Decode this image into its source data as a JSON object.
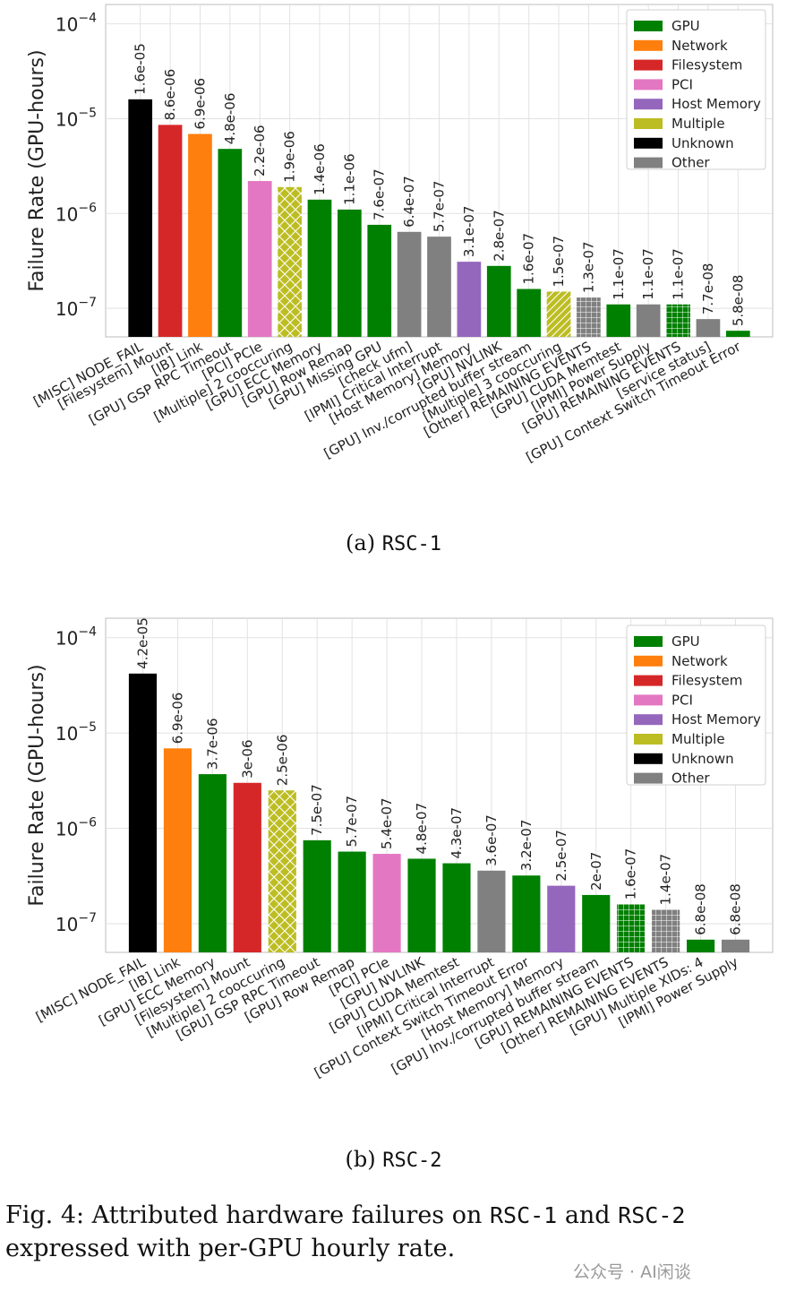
{
  "chart_data": [
    {
      "type": "bar",
      "yscale": "log",
      "ylim": [
        5e-08,
        0.00016
      ],
      "yticks": [
        {
          "value": 1e-07,
          "exp": "−7"
        },
        {
          "value": 1e-06,
          "exp": "−6"
        },
        {
          "value": 1e-05,
          "exp": "−5"
        },
        {
          "value": 0.0001,
          "exp": "−4"
        }
      ],
      "ylabel": "Failure Rate (GPU-hours)",
      "grid": true,
      "legend_position": "top-right",
      "categories": [
        "[MISC] NODE_FAIL",
        "[Filesystem] Mount",
        "[IB] Link",
        "[GPU] GSP RPC Timeout",
        "[PCI] PCIe",
        "[Multiple] 2 cooccuring",
        "[GPU] ECC Memory",
        "[GPU] Row Remap",
        "[GPU] Missing GPU",
        "[check ufm]",
        "[IPMI] Critical Interrupt",
        "[Host Memory] Memory",
        "[GPU] NVLINK",
        "[GPU] Inv./corrupted buffer stream",
        "[Multiple] 3 cooccuring",
        "[Other] REMAINING EVENTS",
        "[GPU] CUDA Memtest",
        "[IPMI] Power Supply",
        "[GPU] REMAINING EVENTS",
        "[service status]",
        "[GPU] Context Switch Timeout Error"
      ],
      "values": [
        1.6e-05,
        8.6e-06,
        6.9e-06,
        4.8e-06,
        2.2e-06,
        1.9e-06,
        1.4e-06,
        1.1e-06,
        7.6e-07,
        6.4e-07,
        5.7e-07,
        3.1e-07,
        2.8e-07,
        1.6e-07,
        1.5e-07,
        1.3e-07,
        1.1e-07,
        1.1e-07,
        1.1e-07,
        7.7e-08,
        5.8e-08
      ],
      "value_labels": [
        "1.6e-05",
        "8.6e-06",
        "6.9e-06",
        "4.8e-06",
        "2.2e-06",
        "1.9e-06",
        "1.4e-06",
        "1.1e-06",
        "7.6e-07",
        "6.4e-07",
        "5.7e-07",
        "3.1e-07",
        "2.8e-07",
        "1.6e-07",
        "1.5e-07",
        "1.3e-07",
        "1.1e-07",
        "1.1e-07",
        "1.1e-07",
        "7.7e-08",
        "5.8e-08"
      ],
      "bar_groups": [
        "Unknown",
        "Filesystem",
        "Network",
        "GPU",
        "PCI",
        "Multiple",
        "GPU",
        "GPU",
        "GPU",
        "Other",
        "Other",
        "Host Memory",
        "GPU",
        "GPU",
        "Multiple",
        "Other",
        "GPU",
        "Other",
        "GPU",
        "Other",
        "GPU"
      ],
      "bar_hatch": [
        "none",
        "none",
        "none",
        "none",
        "none",
        "cross",
        "none",
        "none",
        "none",
        "none",
        "none",
        "none",
        "none",
        "none",
        "diag",
        "grid",
        "none",
        "none",
        "grid",
        "none",
        "none"
      ]
    },
    {
      "type": "bar",
      "yscale": "log",
      "ylim": [
        5e-08,
        0.00016
      ],
      "yticks": [
        {
          "value": 1e-07,
          "exp": "−7"
        },
        {
          "value": 1e-06,
          "exp": "−6"
        },
        {
          "value": 1e-05,
          "exp": "−5"
        },
        {
          "value": 0.0001,
          "exp": "−4"
        }
      ],
      "ylabel": "Failure Rate (GPU-hours)",
      "grid": true,
      "legend_position": "top-right",
      "categories": [
        "[MISC] NODE_FAIL",
        "[IB] Link",
        "[GPU] ECC Memory",
        "[Filesystem] Mount",
        "[Multiple] 2 cooccuring",
        "[GPU] GSP RPC Timeout",
        "[GPU] Row Remap",
        "[PCI] PCIe",
        "[GPU] NVLINK",
        "[GPU] CUDA Memtest",
        "[IPMI] Critical Interrupt",
        "[GPU] Context Switch Timeout Error",
        "[Host Memory] Memory",
        "[GPU] Inv./corrupted buffer stream",
        "[GPU] REMAINING EVENTS",
        "[Other] REMAINING EVENTS",
        "[GPU] Multiple XIDs: 4",
        "[IPMI] Power Supply"
      ],
      "values": [
        4.2e-05,
        6.9e-06,
        3.7e-06,
        3e-06,
        2.5e-06,
        7.5e-07,
        5.7e-07,
        5.4e-07,
        4.8e-07,
        4.3e-07,
        3.6e-07,
        3.2e-07,
        2.5e-07,
        2e-07,
        1.6e-07,
        1.4e-07,
        6.8e-08,
        6.8e-08
      ],
      "value_labels": [
        "4.2e-05",
        "6.9e-06",
        "3.7e-06",
        "3e-06",
        "2.5e-06",
        "7.5e-07",
        "5.7e-07",
        "5.4e-07",
        "4.8e-07",
        "4.3e-07",
        "3.6e-07",
        "3.2e-07",
        "2.5e-07",
        "2e-07",
        "1.6e-07",
        "1.4e-07",
        "6.8e-08",
        "6.8e-08"
      ],
      "bar_groups": [
        "Unknown",
        "Network",
        "GPU",
        "Filesystem",
        "Multiple",
        "GPU",
        "GPU",
        "PCI",
        "GPU",
        "GPU",
        "Other",
        "GPU",
        "Host Memory",
        "GPU",
        "GPU",
        "Other",
        "GPU",
        "Other"
      ],
      "bar_hatch": [
        "none",
        "none",
        "none",
        "none",
        "cross",
        "none",
        "none",
        "none",
        "none",
        "none",
        "none",
        "none",
        "none",
        "none",
        "grid",
        "grid",
        "none",
        "none"
      ]
    }
  ],
  "legend": [
    {
      "name": "GPU",
      "color": "#008000"
    },
    {
      "name": "Network",
      "color": "#ff7f0e"
    },
    {
      "name": "Filesystem",
      "color": "#d62728"
    },
    {
      "name": "PCI",
      "color": "#e377c2"
    },
    {
      "name": "Host Memory",
      "color": "#9467bd"
    },
    {
      "name": "Multiple",
      "color": "#bcbd22"
    },
    {
      "name": "Unknown",
      "color": "#000000"
    },
    {
      "name": "Other",
      "color": "#808080"
    }
  ],
  "captions": {
    "a_prefix": "(a) ",
    "a_name": "RSC-1",
    "b_prefix": "(b) ",
    "b_name": "RSC-2",
    "fig_1": "Fig. 4: Attributed hardware failures on ",
    "fig_2": "RSC-1",
    "fig_3": " and ",
    "fig_4": "RSC-2",
    "fig_5": " expressed with per-GPU hourly rate."
  },
  "watermark": "公众号 · AI闲谈"
}
